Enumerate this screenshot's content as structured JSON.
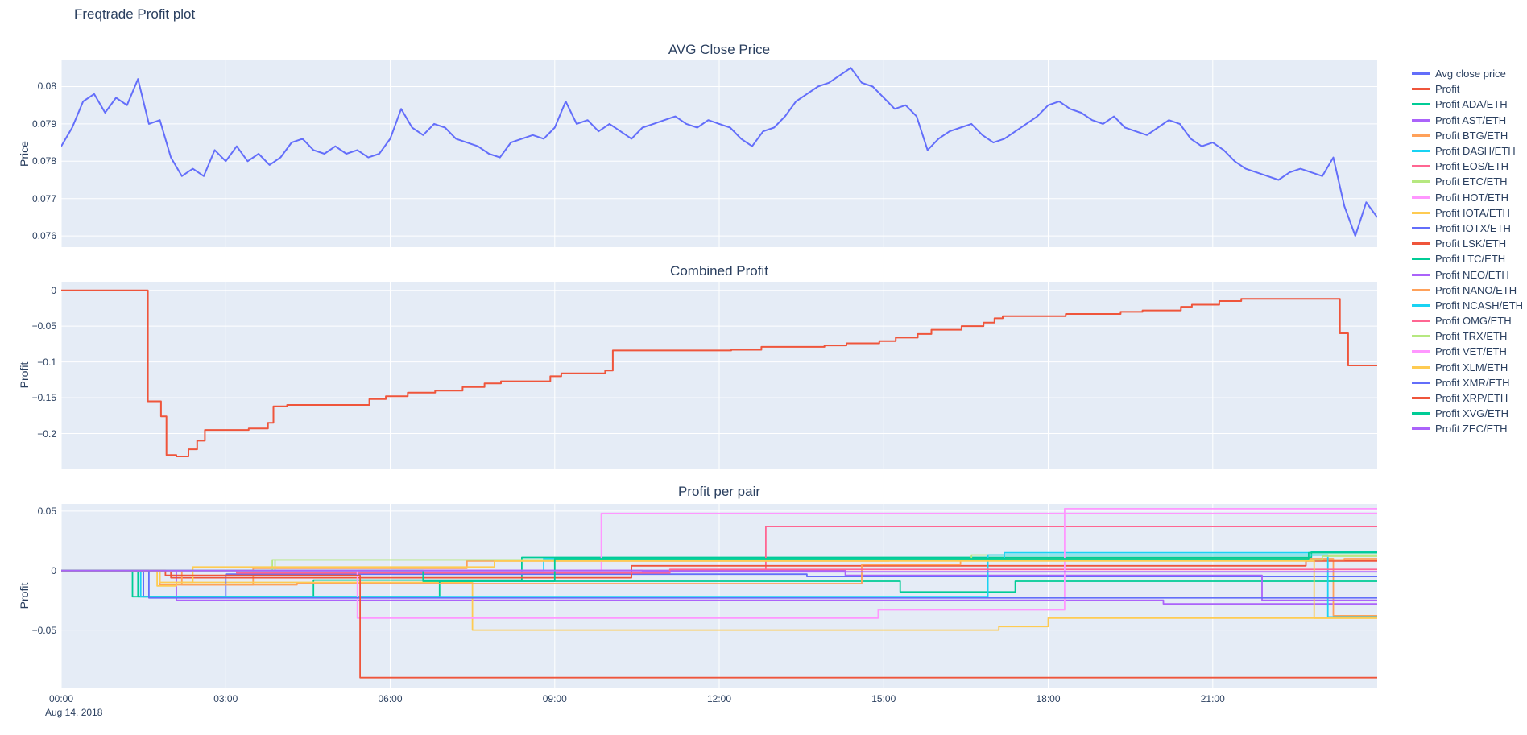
{
  "title": "Freqtrade Profit plot",
  "date_annotation": "Aug 14, 2018",
  "colors": {
    "background": "#ffffff",
    "plot_background": "#E5ECF6",
    "grid": "#ffffff",
    "text": "#2a3f5f",
    "palette": [
      "#636EFA",
      "#EF553B",
      "#00CC96",
      "#AB63FA",
      "#FFA15A",
      "#19D3F3",
      "#FF6692",
      "#B6E880",
      "#FF97FF",
      "#FECB52"
    ]
  },
  "xaxis": {
    "range": [
      0,
      24
    ],
    "ticks": [
      0,
      3,
      6,
      9,
      12,
      15,
      18,
      21
    ],
    "labels": [
      "00:00",
      "03:00",
      "06:00",
      "09:00",
      "12:00",
      "15:00",
      "18:00",
      "21:00"
    ]
  },
  "legend": {
    "position": "right",
    "items": [
      {
        "label": "Avg close price",
        "color": "#636EFA"
      },
      {
        "label": "Profit",
        "color": "#EF553B"
      },
      {
        "label": "Profit ADA/ETH",
        "color": "#00CC96"
      },
      {
        "label": "Profit AST/ETH",
        "color": "#AB63FA"
      },
      {
        "label": "Profit BTG/ETH",
        "color": "#FFA15A"
      },
      {
        "label": "Profit DASH/ETH",
        "color": "#19D3F3"
      },
      {
        "label": "Profit EOS/ETH",
        "color": "#FF6692"
      },
      {
        "label": "Profit ETC/ETH",
        "color": "#B6E880"
      },
      {
        "label": "Profit HOT/ETH",
        "color": "#FF97FF"
      },
      {
        "label": "Profit IOTA/ETH",
        "color": "#FECB52"
      },
      {
        "label": "Profit IOTX/ETH",
        "color": "#636EFA"
      },
      {
        "label": "Profit LSK/ETH",
        "color": "#EF553B"
      },
      {
        "label": "Profit LTC/ETH",
        "color": "#00CC96"
      },
      {
        "label": "Profit NEO/ETH",
        "color": "#AB63FA"
      },
      {
        "label": "Profit NANO/ETH",
        "color": "#FFA15A"
      },
      {
        "label": "Profit NCASH/ETH",
        "color": "#19D3F3"
      },
      {
        "label": "Profit OMG/ETH",
        "color": "#FF6692"
      },
      {
        "label": "Profit TRX/ETH",
        "color": "#B6E880"
      },
      {
        "label": "Profit VET/ETH",
        "color": "#FF97FF"
      },
      {
        "label": "Profit XLM/ETH",
        "color": "#FECB52"
      },
      {
        "label": "Profit XMR/ETH",
        "color": "#636EFA"
      },
      {
        "label": "Profit XRP/ETH",
        "color": "#EF553B"
      },
      {
        "label": "Profit XVG/ETH",
        "color": "#00CC96"
      },
      {
        "label": "Profit ZEC/ETH",
        "color": "#AB63FA"
      }
    ]
  },
  "chart_data": [
    {
      "id": "avg-close-price",
      "type": "line",
      "title": "AVG Close Price",
      "ylabel": "Price",
      "ylim": [
        0.0757,
        0.0807
      ],
      "grid": true,
      "yticks": [
        {
          "v": 0.076,
          "label": "0.076"
        },
        {
          "v": 0.077,
          "label": "0.077"
        },
        {
          "v": 0.078,
          "label": "0.078"
        },
        {
          "v": 0.079,
          "label": "0.079"
        },
        {
          "v": 0.08,
          "label": "0.08"
        }
      ],
      "series": [
        {
          "name": "Avg close price",
          "color": "#636EFA",
          "mode": "linear",
          "x_start": 0,
          "x_step": 0.2,
          "values": [
            0.0784,
            0.0789,
            0.0796,
            0.0798,
            0.0793,
            0.0797,
            0.0795,
            0.0802,
            0.079,
            0.0791,
            0.0781,
            0.0776,
            0.0778,
            0.0776,
            0.0783,
            0.078,
            0.0784,
            0.078,
            0.0782,
            0.0779,
            0.0781,
            0.0785,
            0.0786,
            0.0783,
            0.0782,
            0.0784,
            0.0782,
            0.0783,
            0.0781,
            0.0782,
            0.0786,
            0.0794,
            0.0789,
            0.0787,
            0.079,
            0.0789,
            0.0786,
            0.0785,
            0.0784,
            0.0782,
            0.0781,
            0.0785,
            0.0786,
            0.0787,
            0.0786,
            0.0789,
            0.0796,
            0.079,
            0.0791,
            0.0788,
            0.079,
            0.0788,
            0.0786,
            0.0789,
            0.079,
            0.0791,
            0.0792,
            0.079,
            0.0789,
            0.0791,
            0.079,
            0.0789,
            0.0786,
            0.0784,
            0.0788,
            0.0789,
            0.0792,
            0.0796,
            0.0798,
            0.08,
            0.0801,
            0.0803,
            0.0805,
            0.0801,
            0.08,
            0.0797,
            0.0794,
            0.0795,
            0.0792,
            0.0783,
            0.0786,
            0.0788,
            0.0789,
            0.079,
            0.0787,
            0.0785,
            0.0786,
            0.0788,
            0.079,
            0.0792,
            0.0795,
            0.0796,
            0.0794,
            0.0793,
            0.0791,
            0.079,
            0.0792,
            0.0789,
            0.0788,
            0.0787,
            0.0789,
            0.0791,
            0.079,
            0.0786,
            0.0784,
            0.0785,
            0.0783,
            0.078,
            0.0778,
            0.0777,
            0.0776,
            0.0775,
            0.0777,
            0.0778,
            0.0777,
            0.0776,
            0.0781,
            0.0768,
            0.076,
            0.0769,
            0.0765
          ]
        }
      ]
    },
    {
      "id": "combined-profit",
      "type": "line",
      "title": "Combined Profit",
      "ylabel": "Profit",
      "ylim": [
        -0.25,
        0.012
      ],
      "grid": true,
      "yticks": [
        {
          "v": 0,
          "label": "0"
        },
        {
          "v": -0.05,
          "label": "−0.05"
        },
        {
          "v": -0.1,
          "label": "−0.1"
        },
        {
          "v": -0.15,
          "label": "−0.15"
        },
        {
          "v": -0.2,
          "label": "−0.2"
        }
      ],
      "series": [
        {
          "name": "Profit",
          "color": "#EF553B",
          "mode": "step",
          "points": [
            [
              0,
              0
            ],
            [
              1.58,
              -0.155
            ],
            [
              1.82,
              -0.176
            ],
            [
              1.92,
              -0.23
            ],
            [
              2.1,
              -0.232
            ],
            [
              2.32,
              -0.222
            ],
            [
              2.48,
              -0.21
            ],
            [
              2.62,
              -0.195
            ],
            [
              3.42,
              -0.193
            ],
            [
              3.77,
              -0.185
            ],
            [
              3.87,
              -0.162
            ],
            [
              4.12,
              -0.16
            ],
            [
              5.62,
              -0.152
            ],
            [
              5.92,
              -0.148
            ],
            [
              6.32,
              -0.143
            ],
            [
              6.82,
              -0.14
            ],
            [
              7.32,
              -0.135
            ],
            [
              7.72,
              -0.13
            ],
            [
              8.02,
              -0.127
            ],
            [
              8.92,
              -0.12
            ],
            [
              9.12,
              -0.116
            ],
            [
              9.92,
              -0.112
            ],
            [
              10.06,
              -0.084
            ],
            [
              12.22,
              -0.083
            ],
            [
              12.77,
              -0.079
            ],
            [
              13.92,
              -0.077
            ],
            [
              14.32,
              -0.074
            ],
            [
              14.92,
              -0.071
            ],
            [
              15.22,
              -0.066
            ],
            [
              15.62,
              -0.061
            ],
            [
              15.87,
              -0.055
            ],
            [
              16.42,
              -0.05
            ],
            [
              16.82,
              -0.045
            ],
            [
              17.02,
              -0.039
            ],
            [
              17.17,
              -0.036
            ],
            [
              18.32,
              -0.033
            ],
            [
              19.32,
              -0.03
            ],
            [
              19.72,
              -0.028
            ],
            [
              20.42,
              -0.023
            ],
            [
              20.62,
              -0.02
            ],
            [
              21.12,
              -0.015
            ],
            [
              21.52,
              -0.012
            ],
            [
              23.32,
              -0.06
            ],
            [
              23.47,
              -0.105
            ]
          ]
        }
      ]
    },
    {
      "id": "profit-per-pair",
      "type": "line",
      "title": "Profit per pair",
      "ylabel": "Profit",
      "ylim": [
        -0.099,
        0.056
      ],
      "grid": true,
      "yticks": [
        {
          "v": 0.05,
          "label": "0.05"
        },
        {
          "v": 0,
          "label": "0"
        },
        {
          "v": -0.05,
          "label": "−0.05"
        }
      ],
      "series": [
        {
          "name": "Profit ADA/ETH",
          "color": "#00CC96",
          "mode": "step",
          "points": [
            [
              0,
              0
            ],
            [
              1.4,
              -0.022
            ],
            [
              4.6,
              -0.008
            ],
            [
              8.4,
              0.011
            ],
            [
              22.8,
              0.016
            ]
          ]
        },
        {
          "name": "Profit AST/ETH",
          "color": "#AB63FA",
          "mode": "step",
          "points": [
            [
              0,
              0
            ],
            [
              2.1,
              -0.025
            ],
            [
              20.1,
              -0.028
            ]
          ]
        },
        {
          "name": "Profit BTG/ETH",
          "color": "#FFA15A",
          "mode": "step",
          "points": [
            [
              0,
              0
            ],
            [
              1.8,
              -0.012
            ],
            [
              3.5,
              0.002
            ],
            [
              7.4,
              0.008
            ],
            [
              15.1,
              0.01
            ],
            [
              23.2,
              -0.038
            ]
          ]
        },
        {
          "name": "Profit DASH/ETH",
          "color": "#19D3F3",
          "mode": "step",
          "points": [
            [
              0,
              0
            ],
            [
              8.8,
              0.01
            ],
            [
              17.2,
              0.015
            ]
          ]
        },
        {
          "name": "Profit EOS/ETH",
          "color": "#FF6692",
          "mode": "step",
          "points": [
            [
              0,
              0
            ],
            [
              12.85,
              0.037
            ]
          ]
        },
        {
          "name": "Profit ETC/ETH",
          "color": "#B6E880",
          "mode": "step",
          "points": [
            [
              0,
              0
            ],
            [
              3.9,
              0.009
            ],
            [
              16.6,
              0.013
            ]
          ]
        },
        {
          "name": "Profit HOT/ETH",
          "color": "#FF97FF",
          "mode": "step",
          "points": [
            [
              0,
              0
            ],
            [
              9.85,
              0.048
            ]
          ]
        },
        {
          "name": "Profit IOTA/ETH",
          "color": "#FECB52",
          "mode": "step",
          "points": [
            [
              0,
              0
            ],
            [
              1.75,
              -0.013
            ],
            [
              2.1,
              -0.01
            ],
            [
              7.5,
              -0.05
            ],
            [
              17.1,
              -0.047
            ],
            [
              18.0,
              -0.04
            ]
          ]
        },
        {
          "name": "Profit IOTX/ETH",
          "color": "#636EFA",
          "mode": "step",
          "points": [
            [
              0,
              0
            ],
            [
              1.5,
              -0.022
            ],
            [
              3.0,
              -0.003
            ],
            [
              13.6,
              -0.005
            ]
          ]
        },
        {
          "name": "Profit LSK/ETH",
          "color": "#EF553B",
          "mode": "step",
          "points": [
            [
              0,
              0
            ],
            [
              2.0,
              -0.006
            ],
            [
              10.4,
              0.004
            ],
            [
              22.7,
              0.008
            ]
          ]
        },
        {
          "name": "Profit LTC/ETH",
          "color": "#00CC96",
          "mode": "step",
          "points": [
            [
              0,
              0
            ],
            [
              1.3,
              -0.022
            ],
            [
              6.9,
              -0.009
            ],
            [
              15.3,
              -0.018
            ],
            [
              17.4,
              -0.009
            ]
          ]
        },
        {
          "name": "Profit NEO/ETH",
          "color": "#AB63FA",
          "mode": "step",
          "points": [
            [
              0,
              0
            ],
            [
              14.3,
              -0.004
            ],
            [
              21.9,
              -0.025
            ]
          ]
        },
        {
          "name": "Profit NANO/ETH",
          "color": "#FFA15A",
          "mode": "step",
          "points": [
            [
              0,
              0
            ],
            [
              2.2,
              -0.012
            ],
            [
              4.3,
              -0.011
            ],
            [
              14.6,
              0.005
            ],
            [
              16.4,
              0.009
            ],
            [
              23.4,
              0.01
            ]
          ]
        },
        {
          "name": "Profit NCASH/ETH",
          "color": "#19D3F3",
          "mode": "step",
          "points": [
            [
              0,
              0
            ],
            [
              1.45,
              -0.022
            ],
            [
              16.9,
              0.013
            ],
            [
              23.1,
              -0.039
            ]
          ]
        },
        {
          "name": "Profit OMG/ETH",
          "color": "#FF6692",
          "mode": "step",
          "points": [
            [
              0,
              0
            ],
            [
              3.2,
              -0.002
            ],
            [
              11.1,
              0.001
            ]
          ]
        },
        {
          "name": "Profit TRX/ETH",
          "color": "#B6E880",
          "mode": "step",
          "points": [
            [
              0,
              0
            ],
            [
              3.85,
              0.009
            ],
            [
              23.0,
              0.012
            ]
          ]
        },
        {
          "name": "Profit VET/ETH",
          "color": "#FF97FF",
          "mode": "step",
          "points": [
            [
              0,
              0
            ],
            [
              5.4,
              -0.04
            ],
            [
              14.9,
              -0.033
            ],
            [
              18.3,
              0.052
            ]
          ]
        },
        {
          "name": "Profit XLM/ETH",
          "color": "#FECB52",
          "mode": "step",
          "points": [
            [
              0,
              0
            ],
            [
              1.8,
              -0.01
            ],
            [
              2.4,
              0.003
            ],
            [
              7.9,
              0.008
            ],
            [
              22.85,
              -0.04
            ]
          ]
        },
        {
          "name": "Profit XMR/ETH",
          "color": "#636EFA",
          "mode": "step",
          "points": [
            [
              0,
              0
            ],
            [
              1.6,
              -0.023
            ]
          ]
        },
        {
          "name": "Profit XRP/ETH",
          "color": "#EF553B",
          "mode": "step",
          "points": [
            [
              0,
              0
            ],
            [
              1.9,
              -0.004
            ],
            [
              5.45,
              -0.09
            ]
          ]
        },
        {
          "name": "Profit XVG/ETH",
          "color": "#00CC96",
          "mode": "step",
          "points": [
            [
              0,
              0
            ],
            [
              6.6,
              -0.009
            ],
            [
              9.0,
              0.01
            ],
            [
              22.75,
              0.015
            ]
          ]
        },
        {
          "name": "Profit ZEC/ETH",
          "color": "#AB63FA",
          "mode": "step",
          "points": [
            [
              0,
              0
            ],
            [
              10.6,
              -0.001
            ]
          ]
        }
      ]
    }
  ]
}
